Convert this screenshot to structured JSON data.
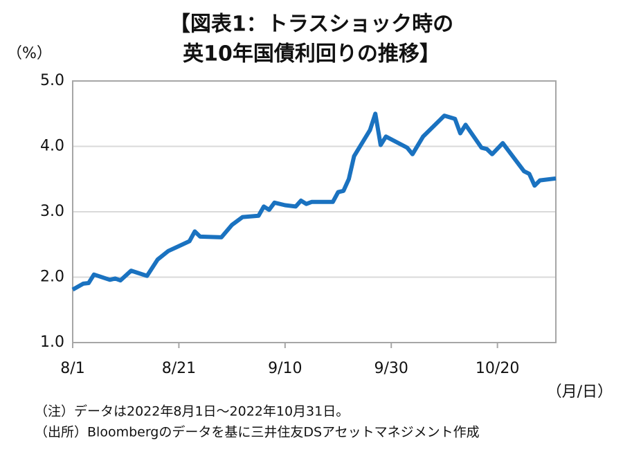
{
  "chart_data": {
    "type": "line",
    "title": [
      "【図表1：トラスショック時の",
      "英10年国債利回りの推移】"
    ],
    "y_label": "（%）",
    "x_label": "（月/日）",
    "notes": [
      "（注）データは2022年8月1日～2022年10月31日。",
      "（出所）Bloombergのデータを基に三井住友DSアセットマネジメント作成"
    ],
    "x": [
      "8/1",
      "8/3",
      "8/4",
      "8/5",
      "8/8",
      "8/9",
      "8/10",
      "8/12",
      "8/15",
      "8/17",
      "8/19",
      "8/23",
      "8/24",
      "8/25",
      "8/29",
      "8/31",
      "9/2",
      "9/5",
      "9/6",
      "9/7",
      "9/8",
      "9/10",
      "9/12",
      "9/13",
      "9/14",
      "9/15",
      "9/19",
      "9/20",
      "9/21",
      "9/22",
      "9/23",
      "9/26",
      "9/27",
      "9/28",
      "9/29",
      "10/3",
      "10/4",
      "10/6",
      "10/10",
      "10/12",
      "10/13",
      "10/14",
      "10/17",
      "10/18",
      "10/19",
      "10/21",
      "10/25",
      "10/26",
      "10/27",
      "10/28",
      "10/31"
    ],
    "series": [
      {
        "color": "#1a72c0",
        "values": [
          1.81,
          1.9,
          1.91,
          2.04,
          1.96,
          1.98,
          1.95,
          2.1,
          2.02,
          2.27,
          2.4,
          2.55,
          2.7,
          2.62,
          2.61,
          2.8,
          2.92,
          2.94,
          3.08,
          3.03,
          3.14,
          3.1,
          3.08,
          3.17,
          3.12,
          3.15,
          3.15,
          3.3,
          3.32,
          3.5,
          3.85,
          4.25,
          4.5,
          4.02,
          4.15,
          3.98,
          3.88,
          4.15,
          4.47,
          4.42,
          4.2,
          4.33,
          3.98,
          3.96,
          3.88,
          4.05,
          3.62,
          3.58,
          3.4,
          3.48,
          3.51
        ]
      }
    ],
    "xlim": [
      "8/1",
      "10/31"
    ],
    "xticks": [
      "8/1",
      "8/21",
      "9/10",
      "9/30",
      "10/20"
    ],
    "ylim": [
      1,
      5
    ],
    "yticks": [
      {
        "value": 1,
        "label": "1.0"
      },
      {
        "value": 2,
        "label": "2.0"
      },
      {
        "value": 3,
        "label": "3.0"
      },
      {
        "value": 4,
        "label": "4.0"
      },
      {
        "value": 5,
        "label": "5.0"
      }
    ],
    "grid": true
  }
}
